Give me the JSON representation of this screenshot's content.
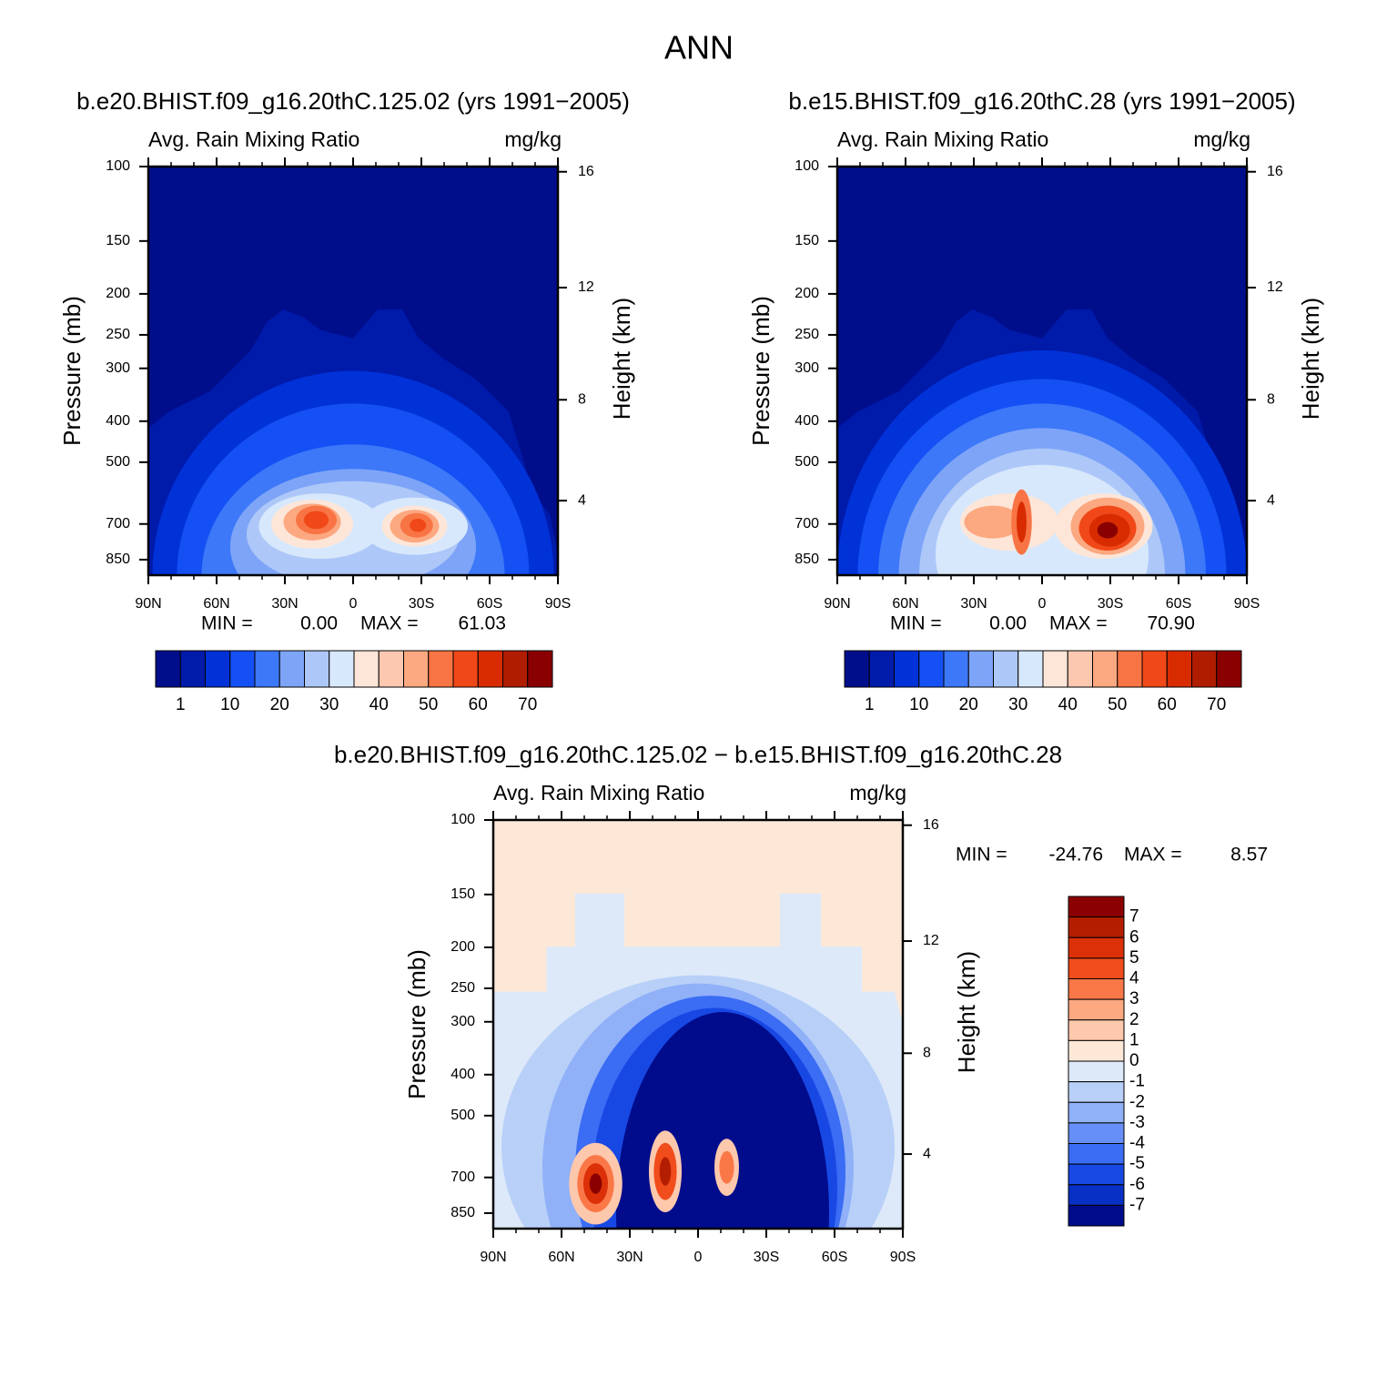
{
  "title": "ANN",
  "chart_data": [
    {
      "type": "contour",
      "subtitle": "b.e20.BHIST.f09_g16.20thC.125.02 (yrs 1991−2005)",
      "left_label": "Avg. Rain Mixing Ratio",
      "right_label": "mg/kg",
      "y_label": "Pressure (mb)",
      "y2_label": "Height (km)",
      "xlim": [
        90,
        -90
      ],
      "xticks": [
        {
          "value": 90,
          "label": "90N"
        },
        {
          "value": 60,
          "label": "60N"
        },
        {
          "value": 30,
          "label": "30N"
        },
        0,
        {
          "value": -30,
          "label": "30S"
        },
        {
          "value": -60,
          "label": "60S"
        },
        {
          "value": -90,
          "label": "90S"
        }
      ],
      "ylim": [
        100,
        925
      ],
      "log_scale": true,
      "yticks": [
        100,
        150,
        200,
        250,
        300,
        400,
        500,
        700,
        850
      ],
      "y2ticks": [
        4,
        8,
        12,
        16
      ],
      "min_label": "MIN =",
      "min": {
        "value": 0,
        "label": "0.00"
      },
      "max_label": "MAX =",
      "max": 61.03,
      "colorbar": {
        "colors": [
          "#000e8c",
          "#001aaa",
          "#0032d8",
          "#1450f4",
          "#3c78f8",
          "#7ea4f8",
          "#adc8f8",
          "#d8e8fc",
          "#fde6d8",
          "#fcc8b0",
          "#fca880",
          "#f87444",
          "#f04818",
          "#d82c00",
          "#b01c00",
          "#8a0000"
        ],
        "labels": [
          1,
          10,
          20,
          30,
          40,
          50,
          60,
          70
        ]
      }
    },
    {
      "type": "contour",
      "subtitle": "b.e15.BHIST.f09_g16.20thC.28 (yrs 1991−2005)",
      "left_label": "Avg. Rain Mixing Ratio",
      "right_label": "mg/kg",
      "y_label": "Pressure (mb)",
      "y2_label": "Height (km)",
      "xlim": [
        90,
        -90
      ],
      "xticks": [
        {
          "value": 90,
          "label": "90N"
        },
        {
          "value": 60,
          "label": "60N"
        },
        {
          "value": 30,
          "label": "30N"
        },
        0,
        {
          "value": -30,
          "label": "30S"
        },
        {
          "value": -60,
          "label": "60S"
        },
        {
          "value": -90,
          "label": "90S"
        }
      ],
      "ylim": [
        100,
        925
      ],
      "log_scale": true,
      "yticks": [
        100,
        150,
        200,
        250,
        300,
        400,
        500,
        700,
        850
      ],
      "y2ticks": [
        4,
        8,
        12,
        16
      ],
      "min_label": "MIN =",
      "min": {
        "value": 0,
        "label": "0.00"
      },
      "max_label": "MAX =",
      "max": {
        "value": 70.9,
        "label": "70.90"
      },
      "colorbar": {
        "colors": [
          "#000e8c",
          "#001aaa",
          "#0032d8",
          "#1450f4",
          "#3c78f8",
          "#7ea4f8",
          "#adc8f8",
          "#d8e8fc",
          "#fde6d8",
          "#fcc8b0",
          "#fca880",
          "#f87444",
          "#f04818",
          "#d82c00",
          "#b01c00",
          "#8a0000"
        ],
        "labels": [
          1,
          10,
          20,
          30,
          40,
          50,
          60,
          70
        ]
      }
    },
    {
      "type": "contour",
      "subtitle": "b.e20.BHIST.f09_g16.20thC.125.02 − b.e15.BHIST.f09_g16.20thC.28",
      "left_label": "Avg. Rain Mixing Ratio",
      "right_label": "mg/kg",
      "y_label": "Pressure (mb)",
      "y2_label": "Height (km)",
      "xlim": [
        90,
        -90
      ],
      "xticks": [
        {
          "value": 90,
          "label": "90N"
        },
        {
          "value": 60,
          "label": "60N"
        },
        {
          "value": 30,
          "label": "30N"
        },
        0,
        {
          "value": -30,
          "label": "30S"
        },
        {
          "value": -60,
          "label": "60S"
        },
        {
          "value": -90,
          "label": "90S"
        }
      ],
      "ylim": [
        100,
        925
      ],
      "log_scale": true,
      "yticks": [
        100,
        150,
        200,
        250,
        300,
        400,
        500,
        700,
        850
      ],
      "y2ticks": [
        4,
        8,
        12,
        16
      ],
      "min_label": "MIN =",
      "min": -24.76,
      "max_label": "MAX =",
      "max": 8.57,
      "colorbar": {
        "colors": [
          "#8b0000",
          "#b41e00",
          "#dc3008",
          "#f04c1c",
          "#fa7848",
          "#fca880",
          "#fdc8ac",
          "#fde8d8",
          "#dde9f8",
          "#b8d0f8",
          "#90b0f8",
          "#6690f8",
          "#3a6cf4",
          "#1848e4",
          "#0830c4",
          "#000c8c"
        ],
        "labels": [
          7,
          6,
          5,
          4,
          3,
          2,
          1,
          0,
          -1,
          -2,
          -3,
          -4,
          -5,
          -6,
          -7
        ]
      }
    }
  ]
}
